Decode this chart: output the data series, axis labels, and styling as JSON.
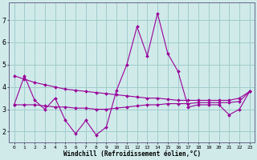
{
  "x": [
    0,
    1,
    2,
    3,
    4,
    5,
    6,
    7,
    8,
    9,
    10,
    11,
    12,
    13,
    14,
    15,
    16,
    17,
    18,
    19,
    20,
    21,
    22,
    23
  ],
  "line1": [
    3.2,
    4.5,
    3.4,
    3.0,
    3.5,
    2.5,
    1.9,
    2.5,
    1.85,
    2.2,
    3.85,
    5.0,
    6.7,
    5.4,
    7.3,
    5.5,
    4.7,
    3.1,
    3.2,
    3.2,
    3.2,
    2.75,
    3.0,
    3.8
  ],
  "line2": [
    4.5,
    4.35,
    4.2,
    4.1,
    4.0,
    3.9,
    3.85,
    3.8,
    3.75,
    3.7,
    3.65,
    3.6,
    3.55,
    3.5,
    3.5,
    3.45,
    3.4,
    3.4,
    3.4,
    3.4,
    3.4,
    3.4,
    3.5,
    3.8
  ],
  "line3": [
    3.2,
    3.2,
    3.2,
    3.15,
    3.1,
    3.1,
    3.05,
    3.05,
    3.0,
    3.0,
    3.05,
    3.1,
    3.15,
    3.2,
    3.2,
    3.25,
    3.25,
    3.25,
    3.3,
    3.3,
    3.3,
    3.3,
    3.35,
    3.8
  ],
  "color": "#990099",
  "bg_color": "#d0eaea",
  "grid_color": "#a0cccc",
  "xlabel": "Windchill (Refroidissement éolien,°C)",
  "ylim": [
    1.5,
    7.8
  ],
  "xlim": [
    -0.5,
    23.5
  ],
  "yticks": [
    2,
    3,
    4,
    5,
    6,
    7
  ],
  "xticks": [
    0,
    1,
    2,
    3,
    4,
    5,
    6,
    7,
    8,
    9,
    10,
    11,
    12,
    13,
    14,
    15,
    16,
    17,
    18,
    19,
    20,
    21,
    22,
    23
  ]
}
